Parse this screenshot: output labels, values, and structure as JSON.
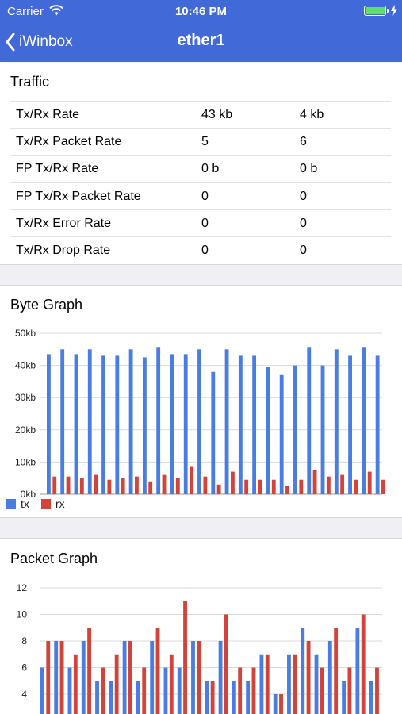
{
  "status": {
    "carrier": "Carrier",
    "time": "10:46 PM"
  },
  "nav": {
    "back_label": "iWinbox",
    "title": "ether1"
  },
  "traffic": {
    "title": "Traffic",
    "rows": [
      {
        "label": "Tx/Rx Rate",
        "tx": "43 kb",
        "rx": "4 kb"
      },
      {
        "label": "Tx/Rx Packet Rate",
        "tx": "5",
        "rx": "6"
      },
      {
        "label": "FP Tx/Rx Rate",
        "tx": "0 b",
        "rx": "0 b"
      },
      {
        "label": "FP Tx/Rx Packet Rate",
        "tx": "0",
        "rx": "0"
      },
      {
        "label": "Tx/Rx Error Rate",
        "tx": "0",
        "rx": "0"
      },
      {
        "label": "Tx/Rx Drop Rate",
        "tx": "0",
        "rx": "0"
      }
    ]
  },
  "colors": {
    "tx": "#4a7de2",
    "rx": "#d2433a",
    "nav": "#4169d8"
  },
  "byte_graph": {
    "title": "Byte Graph",
    "chart_data": {
      "type": "bar",
      "title": "",
      "xlabel": "",
      "ylabel": "",
      "ylim": [
        0,
        50
      ],
      "yticks": [
        "0kb",
        "10kb",
        "20kb",
        "30kb",
        "40kb",
        "50kb"
      ],
      "legend_position": "bottom-left",
      "grid": true,
      "series": [
        {
          "name": "tx",
          "values": [
            43.5,
            45,
            43.5,
            45,
            43,
            43,
            45,
            42.5,
            45.5,
            43.5,
            43.5,
            45,
            38,
            45,
            43,
            43,
            39.5,
            37,
            40,
            45.5,
            40,
            45,
            43,
            45.5,
            43
          ]
        },
        {
          "name": "rx",
          "values": [
            5.5,
            5.5,
            5,
            6,
            4.5,
            5,
            5.5,
            4,
            6,
            5,
            8.5,
            5.5,
            3,
            7,
            4.5,
            4.5,
            4.5,
            2.5,
            4.5,
            7.5,
            5.5,
            6,
            4.5,
            7,
            4.5
          ]
        }
      ]
    }
  },
  "packet_graph": {
    "title": "Packet Graph",
    "chart_data": {
      "type": "bar",
      "title": "",
      "xlabel": "",
      "ylabel": "",
      "ylim": [
        0,
        12
      ],
      "yticks": [
        "4",
        "6",
        "8",
        "10",
        "12"
      ],
      "grid": true,
      "series": [
        {
          "name": "tx",
          "values": [
            6,
            8,
            6,
            8,
            5,
            5,
            8,
            5,
            8,
            6,
            6,
            8,
            5,
            8,
            5,
            5,
            7,
            4,
            7,
            9,
            7,
            8,
            5,
            9,
            5
          ]
        },
        {
          "name": "rx",
          "values": [
            8,
            8,
            7,
            9,
            6,
            7,
            8,
            6,
            9,
            7,
            11,
            8,
            5,
            10,
            6,
            6,
            7,
            4,
            7,
            8,
            6,
            9,
            6,
            10,
            6
          ]
        }
      ]
    }
  }
}
